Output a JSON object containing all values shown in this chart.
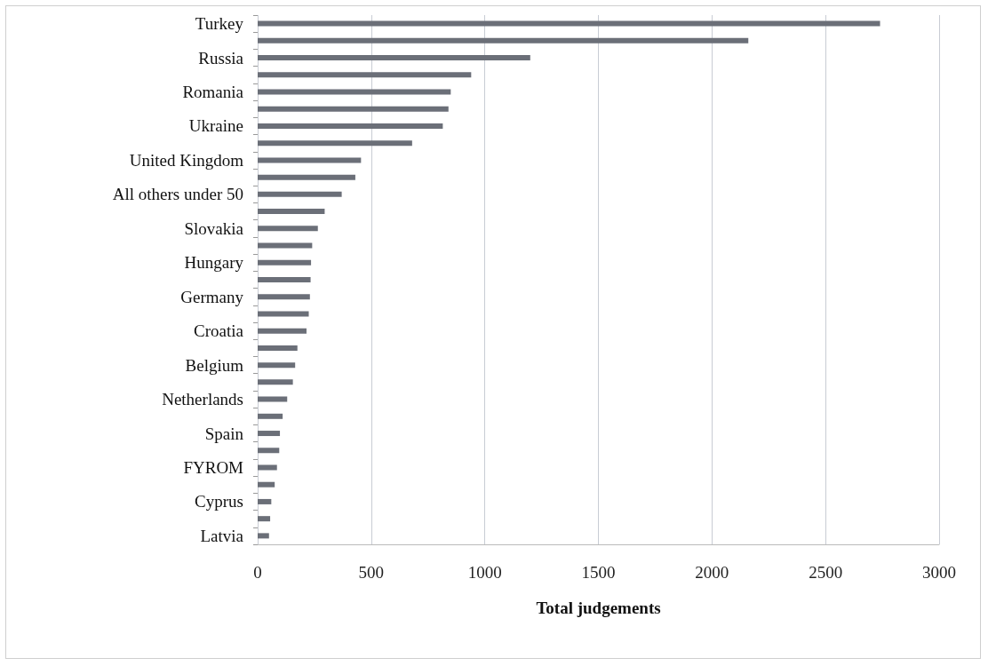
{
  "chart_data": {
    "type": "bar",
    "orientation": "horizontal",
    "xlabel": "Total judgements",
    "categories": [
      "Turkey",
      null,
      "Russia",
      null,
      "Romania",
      null,
      "Ukraine",
      null,
      "United Kingdom",
      null,
      "All others under 50",
      null,
      "Slovakia",
      null,
      "Hungary",
      null,
      "Germany",
      null,
      "Croatia",
      null,
      "Belgium",
      null,
      "Netherlands",
      null,
      "Spain",
      null,
      "FYROM",
      null,
      "Cyprus",
      null,
      "Latvia"
    ],
    "values": [
      2740,
      2160,
      1200,
      940,
      850,
      840,
      815,
      680,
      455,
      430,
      370,
      295,
      265,
      240,
      235,
      233,
      230,
      225,
      215,
      175,
      165,
      155,
      130,
      110,
      98,
      95,
      85,
      75,
      60,
      55,
      50
    ],
    "color": "#6b6f78",
    "xlim": [
      0,
      3000
    ],
    "xticks": [
      0,
      500,
      1000,
      1500,
      2000,
      2500,
      3000
    ],
    "grid": "x"
  }
}
